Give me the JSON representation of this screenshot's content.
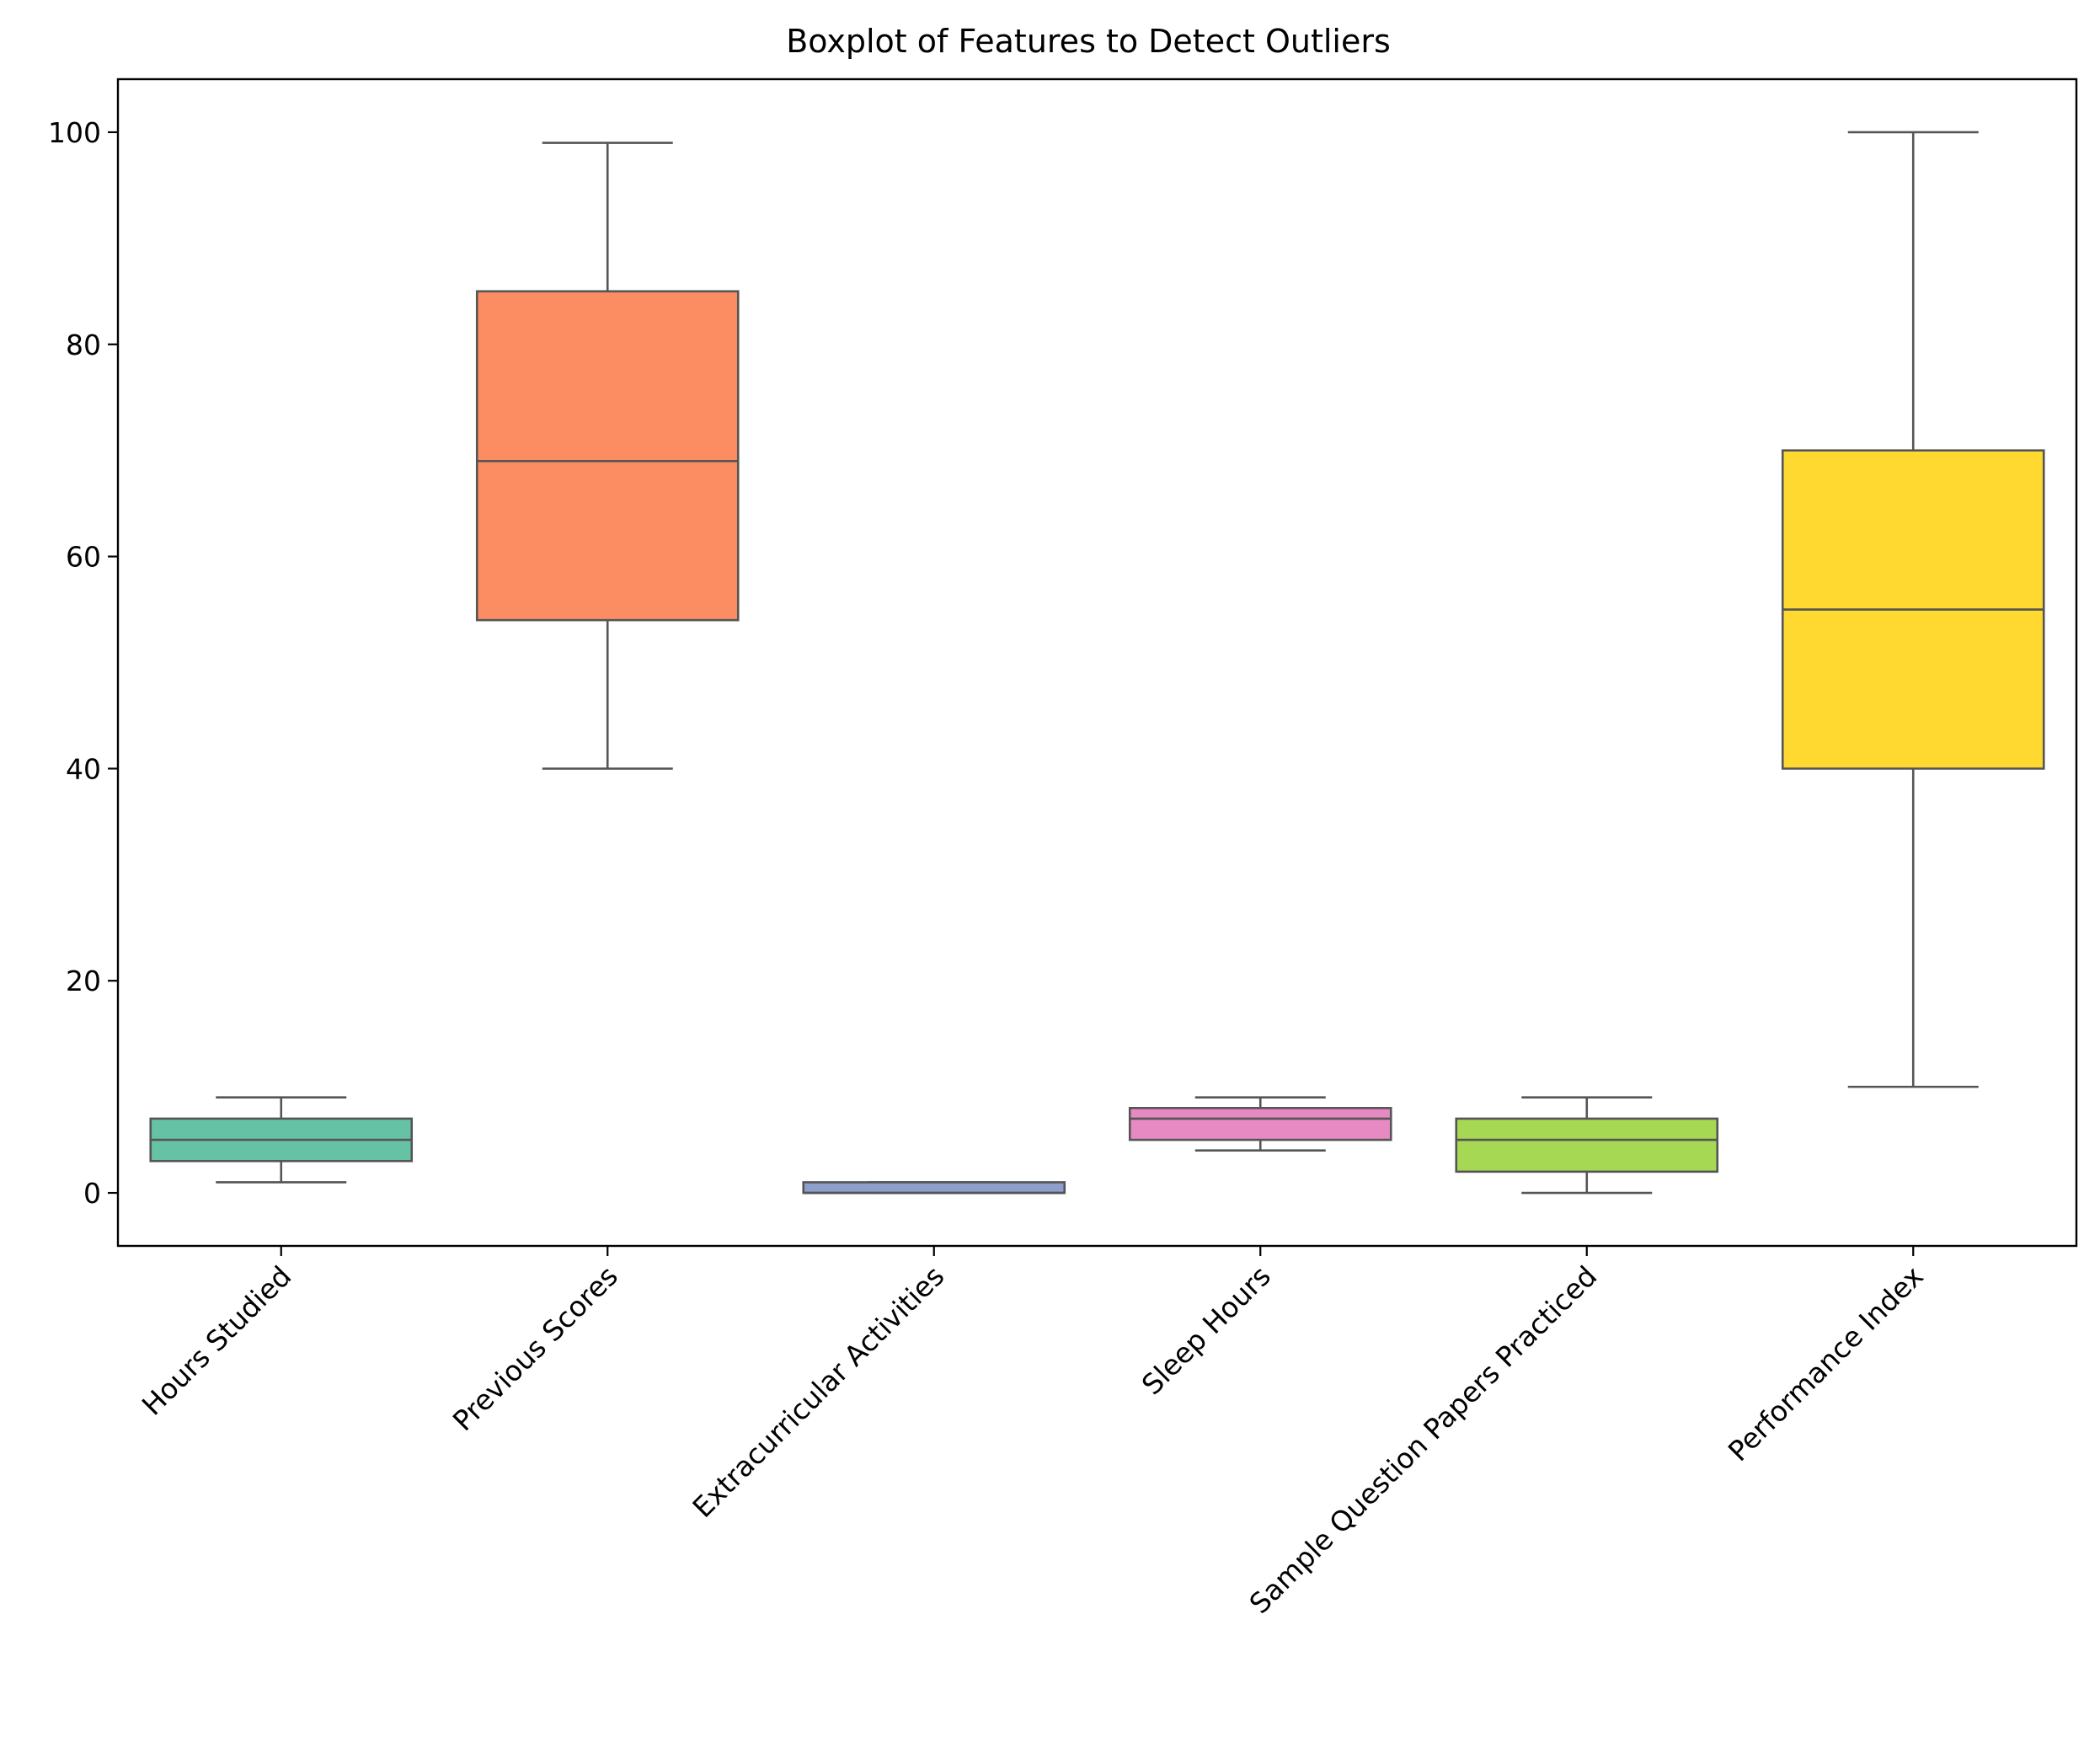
{
  "chart_data": {
    "type": "box",
    "title": "Boxplot of Features to Detect Outliers",
    "xlabel": "",
    "ylabel": "",
    "ylim": [
      -5,
      105
    ],
    "yticks": [
      0,
      20,
      40,
      60,
      80,
      100
    ],
    "grid": false,
    "legend": "none",
    "categories": [
      "Hours Studied",
      "Previous Scores",
      "Extracurricular Activities",
      "Sleep Hours",
      "Sample Question Papers Practiced",
      "Performance Index"
    ],
    "boxes": [
      {
        "label": "Hours Studied",
        "whisker_low": 1,
        "q1": 3,
        "median": 5,
        "q3": 7,
        "whisker_high": 9,
        "color": "#66c2a5"
      },
      {
        "label": "Previous Scores",
        "whisker_low": 40,
        "q1": 54,
        "median": 69,
        "q3": 85,
        "whisker_high": 99,
        "color": "#fc8d62"
      },
      {
        "label": "Extracurricular Activities",
        "whisker_low": 0,
        "q1": 0,
        "median": 0,
        "q3": 1,
        "whisker_high": 1,
        "color": "#8da0cb"
      },
      {
        "label": "Sleep Hours",
        "whisker_low": 4,
        "q1": 5,
        "median": 7,
        "q3": 8,
        "whisker_high": 9,
        "color": "#e78ac3"
      },
      {
        "label": "Sample Question Papers Practiced",
        "whisker_low": 0,
        "q1": 2,
        "median": 5,
        "q3": 7,
        "whisker_high": 9,
        "color": "#a6d854"
      },
      {
        "label": "Performance Index",
        "whisker_low": 10,
        "q1": 40,
        "median": 55,
        "q3": 70,
        "whisker_high": 100,
        "color": "#ffd92f"
      }
    ],
    "colors": {
      "edge": "#555555",
      "axis": "#000000",
      "background": "#ffffff"
    }
  }
}
